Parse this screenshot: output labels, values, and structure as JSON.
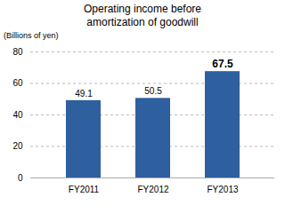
{
  "chart_data": {
    "type": "bar",
    "title": "Operating income before\namortization of goodwill",
    "ylabel": "(Billions of yen)",
    "categories": [
      "FY2011",
      "FY2012",
      "FY2013"
    ],
    "values": [
      49.1,
      50.5,
      67.5
    ],
    "color": "#2e5f9e",
    "ylim": [
      0,
      80
    ],
    "yticks": [
      0,
      20,
      40,
      60,
      80
    ],
    "grid": true,
    "data_labels": true
  }
}
